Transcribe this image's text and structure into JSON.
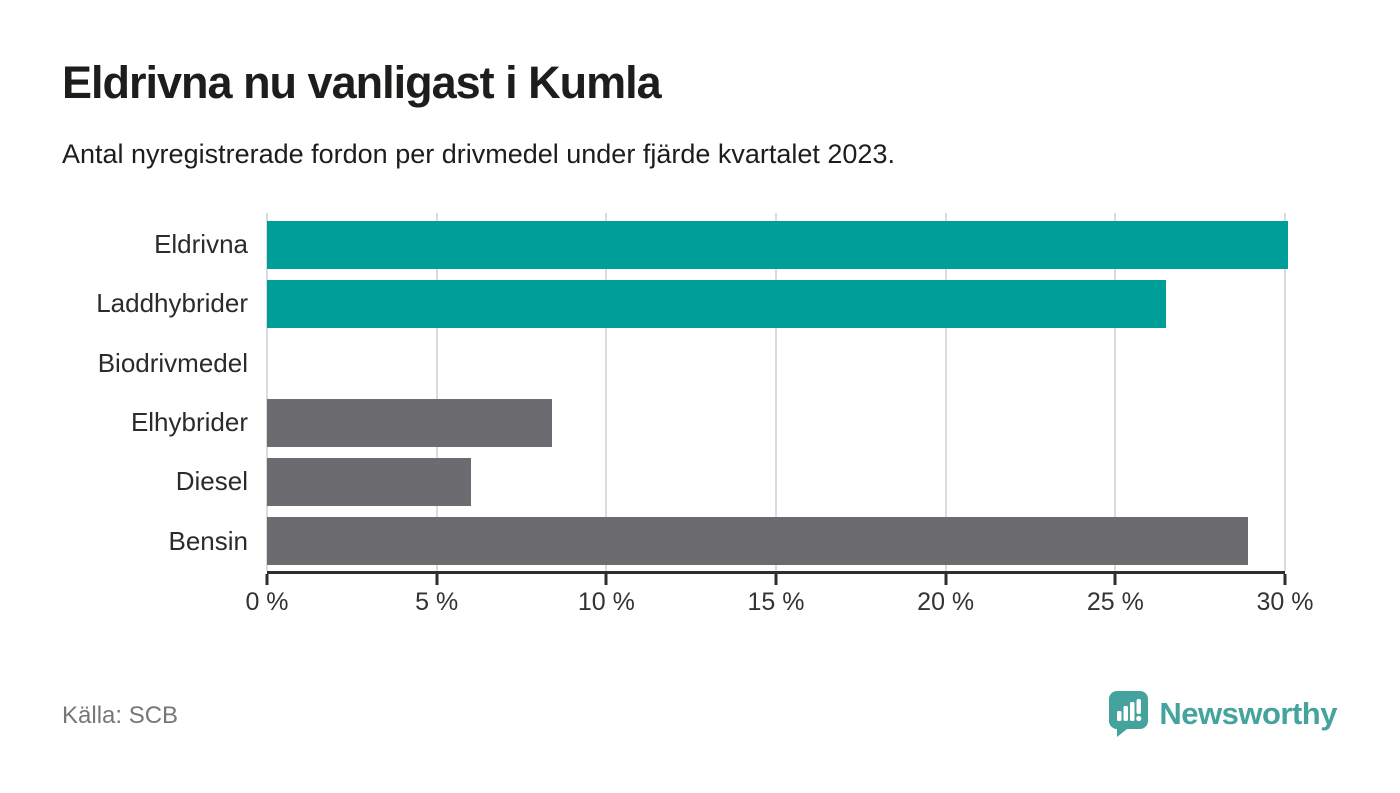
{
  "header": {
    "title": "Eldrivna nu vanligast i Kumla",
    "subtitle": "Antal nyregistrerade fordon per drivmedel under fjärde kvartalet 2023."
  },
  "chart_data": {
    "type": "bar",
    "orientation": "horizontal",
    "title": "Eldrivna nu vanligast i Kumla",
    "subtitle": "Antal nyregistrerade fordon per drivmedel under fjärde kvartalet 2023.",
    "categories": [
      "Eldrivna",
      "Laddhybrider",
      "Biodrivmedel",
      "Elhybrider",
      "Diesel",
      "Bensin"
    ],
    "values": [
      30.1,
      26.5,
      0,
      8.4,
      6.0,
      28.9
    ],
    "unit": "%",
    "xlim": [
      0,
      30
    ],
    "x_tick_values": [
      0,
      5,
      10,
      15,
      20,
      25,
      30
    ],
    "x_tick_labels": [
      "0 %",
      "5 %",
      "10 %",
      "15 %",
      "20 %",
      "25 %",
      "30 %"
    ],
    "bar_colors": [
      "#009e98",
      "#009e98",
      "#6c6c70",
      "#6c6c70",
      "#6c6c70",
      "#6c6c70"
    ],
    "grid": "vertical",
    "legend": "none"
  },
  "colors": {
    "accent_teal": "#009e98",
    "bar_gray": "#6c6c70",
    "gridline": "#dbdbdb",
    "axis": "#2e2e2e",
    "logo_teal": "#44a39c"
  },
  "footer": {
    "source": "Källa: SCB",
    "brand": "Newsworthy"
  }
}
